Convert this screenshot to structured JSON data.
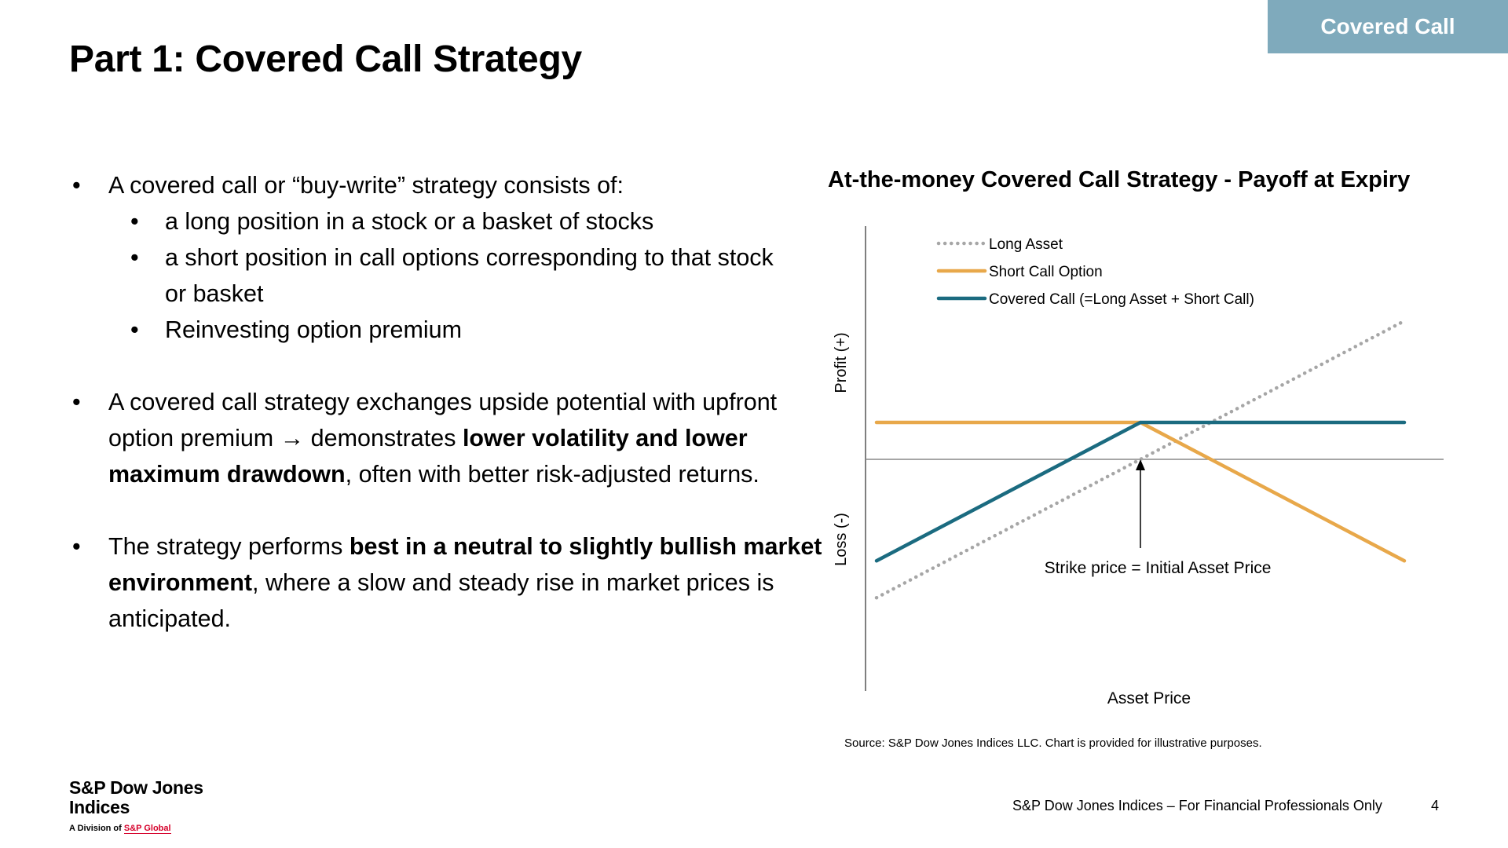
{
  "header": {
    "tag": "Covered Call",
    "title": "Part 1: Covered Call Strategy"
  },
  "body": {
    "b1": {
      "text": "A covered call or “buy-write” strategy consists of:"
    },
    "sub1": "a long position in a stock or a basket of stocks",
    "sub2": "a short position in call options corresponding to that stock or basket",
    "sub3": "Reinvesting option premium",
    "b2": {
      "t1": "A covered call strategy exchanges upside potential with upfront option premium ",
      "arrow": "→",
      "t2": " demonstrates ",
      "bold": "lower volatility and lower maximum drawdown",
      "t3": ", often with better risk-adjusted returns."
    },
    "b3": {
      "t1": "The strategy performs ",
      "bold": "best in a neutral to slightly bullish market environment",
      "t2": ", where a slow and steady rise in market prices is anticipated."
    }
  },
  "chart": {
    "source": "Source: S&P Dow Jones Indices LLC. Chart is provided for illustrative purposes."
  },
  "chart_data": {
    "type": "line",
    "title": "At-the-money Covered Call Strategy - Payoff at Expiry",
    "xlabel": "Asset Price",
    "ylabel_top": "Profit (+)",
    "ylabel_bottom": "Loss (-)",
    "annotation": "Strike price = Initial Asset Price",
    "strike": 0,
    "xlim": [
      -10,
      10
    ],
    "ylim": [
      -10,
      10
    ],
    "legend_position": "top",
    "series": [
      {
        "name": "Long Asset",
        "color": "#a6a6a6",
        "style": "dotted",
        "x": [
          -10,
          10
        ],
        "y": [
          -7.5,
          7.5
        ]
      },
      {
        "name": "Short Call Option",
        "color": "#e8a84a",
        "style": "solid",
        "x": [
          -10,
          0,
          10
        ],
        "y": [
          2,
          2,
          -5.5
        ]
      },
      {
        "name": "Covered Call (=Long Asset + Short Call)",
        "color": "#1b6b80",
        "style": "solid",
        "x": [
          -10,
          0,
          10
        ],
        "y": [
          -5.5,
          2,
          2
        ]
      }
    ]
  },
  "footer": {
    "logo_line1": "S&P Dow Jones",
    "logo_line2": "Indices",
    "logo_sub_prefix": "A Division of ",
    "logo_sub_brand": "S&P Global",
    "text": "S&P Dow Jones Indices – For Financial Professionals Only",
    "page": "4"
  }
}
